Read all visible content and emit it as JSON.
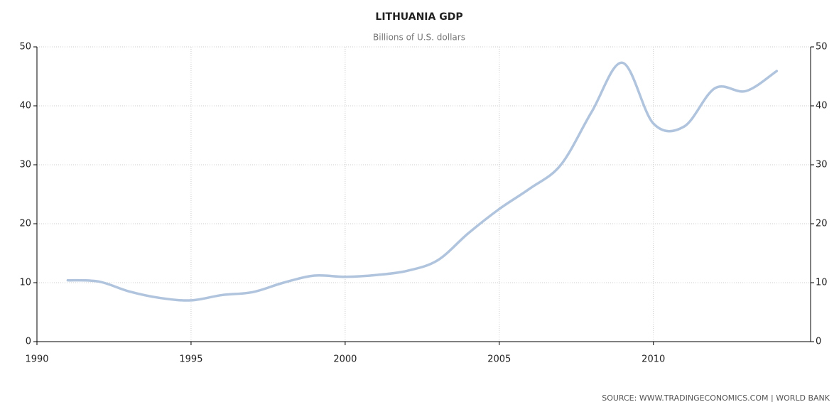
{
  "chart_data": {
    "type": "line",
    "title": "LITHUANIA GDP",
    "subtitle": "Billions of U.S. dollars",
    "source": "SOURCE:  WWW.TRADINGECONOMICS.COM  |  WORLD BANK",
    "x": [
      1991,
      1992,
      1993,
      1994,
      1995,
      1996,
      1997,
      1998,
      1999,
      2000,
      2001,
      2002,
      2003,
      2004,
      2005,
      2006,
      2007,
      2008,
      2009,
      2010,
      2011,
      2012,
      2013,
      2014
    ],
    "series": [
      {
        "name": "GDP",
        "color": "#b0c4de",
        "values": [
          10.4,
          10.2,
          8.5,
          7.4,
          7.0,
          7.9,
          8.4,
          10.0,
          11.2,
          11.0,
          11.3,
          12.0,
          13.8,
          18.4,
          22.5,
          26.0,
          30.0,
          39.0,
          47.3,
          37.0,
          36.5,
          43.0,
          42.5,
          45.9
        ]
      }
    ],
    "xlim": [
      1990,
      2015.1
    ],
    "xticks": [
      1990,
      1995,
      2000,
      2005,
      2010
    ],
    "ylim": [
      0,
      50
    ],
    "yticks": [
      0,
      10,
      20,
      30,
      40,
      50
    ],
    "y2lim": [
      0,
      50
    ],
    "y2ticks": [
      0,
      10,
      20,
      30,
      40,
      50
    ],
    "grid": true
  }
}
